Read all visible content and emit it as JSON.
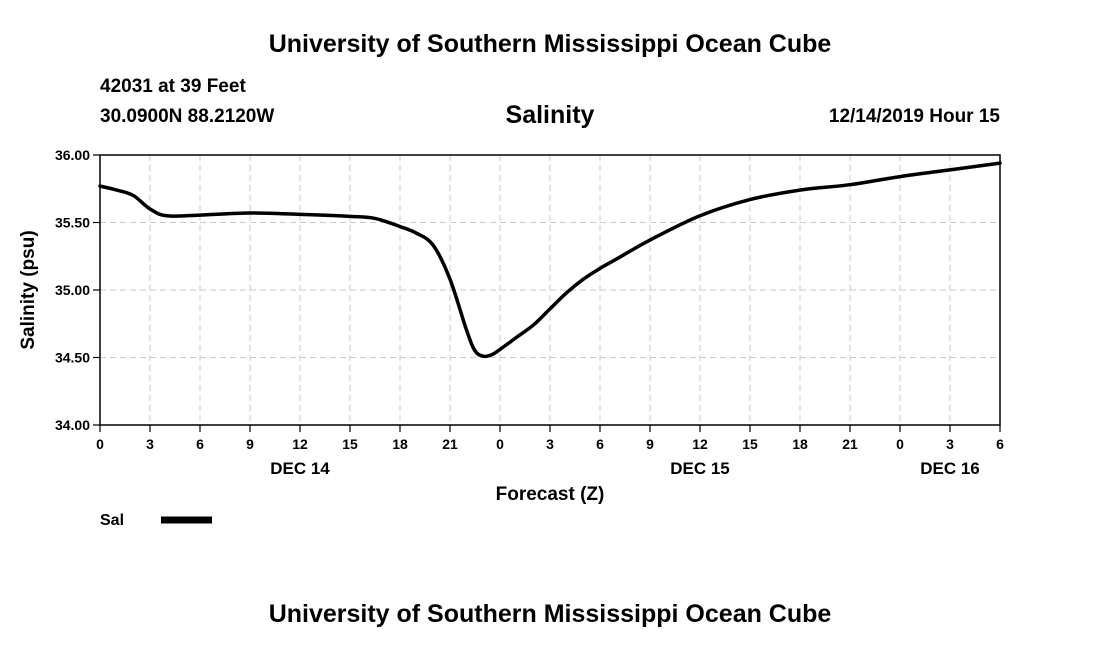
{
  "header": {
    "title": "University of Southern Mississippi Ocean Cube",
    "station": "42031 at 39 Feet",
    "coords": "30.0900N 88.2120W",
    "timestamp": "12/14/2019 Hour 15"
  },
  "footer": {
    "title": "University of Southern Mississippi Ocean Cube"
  },
  "chart_data": {
    "type": "line",
    "title": "Salinity",
    "xlabel": "Forecast (Z)",
    "ylabel": "Salinity (psu)",
    "x_unit": "hours from 00Z Dec 14",
    "xlim": [
      0,
      54
    ],
    "ylim": [
      34.0,
      36.0
    ],
    "x_ticks": [
      {
        "x": 0,
        "label": "0"
      },
      {
        "x": 3,
        "label": "3"
      },
      {
        "x": 6,
        "label": "6"
      },
      {
        "x": 9,
        "label": "9"
      },
      {
        "x": 12,
        "label": "12"
      },
      {
        "x": 15,
        "label": "15"
      },
      {
        "x": 18,
        "label": "18"
      },
      {
        "x": 21,
        "label": "21"
      },
      {
        "x": 24,
        "label": "0"
      },
      {
        "x": 27,
        "label": "3"
      },
      {
        "x": 30,
        "label": "6"
      },
      {
        "x": 33,
        "label": "9"
      },
      {
        "x": 36,
        "label": "12"
      },
      {
        "x": 39,
        "label": "15"
      },
      {
        "x": 42,
        "label": "18"
      },
      {
        "x": 45,
        "label": "21"
      },
      {
        "x": 48,
        "label": "0"
      },
      {
        "x": 51,
        "label": "3"
      },
      {
        "x": 54,
        "label": "6"
      }
    ],
    "y_ticks": [
      {
        "y": 34.0,
        "label": "34.00"
      },
      {
        "y": 34.5,
        "label": "34.50"
      },
      {
        "y": 35.0,
        "label": "35.00"
      },
      {
        "y": 35.5,
        "label": "35.50"
      },
      {
        "y": 36.0,
        "label": "36.00"
      }
    ],
    "day_labels": [
      {
        "x": 12,
        "label": "DEC 14"
      },
      {
        "x": 36,
        "label": "DEC 15"
      },
      {
        "x": 51,
        "label": "DEC 16"
      }
    ],
    "grid": true,
    "legend": {
      "placement": "bottom-left",
      "label": "Sal"
    },
    "series": [
      {
        "name": "Sal",
        "color": "#000000",
        "x": [
          0,
          1,
          2,
          3,
          4,
          6,
          9,
          12,
          15,
          16.5,
          18,
          19,
          20,
          21,
          22,
          22.5,
          23,
          23.5,
          24,
          25,
          26,
          27,
          28,
          29,
          30,
          31,
          33,
          36,
          39,
          42,
          45,
          48,
          51,
          54
        ],
        "y": [
          35.77,
          35.74,
          35.7,
          35.6,
          35.55,
          35.555,
          35.57,
          35.56,
          35.545,
          35.53,
          35.47,
          35.42,
          35.33,
          35.08,
          34.7,
          34.55,
          34.51,
          34.52,
          34.56,
          34.65,
          34.74,
          34.86,
          34.98,
          35.08,
          35.16,
          35.23,
          35.37,
          35.55,
          35.67,
          35.74,
          35.78,
          35.84,
          35.89,
          35.94
        ]
      }
    ]
  }
}
